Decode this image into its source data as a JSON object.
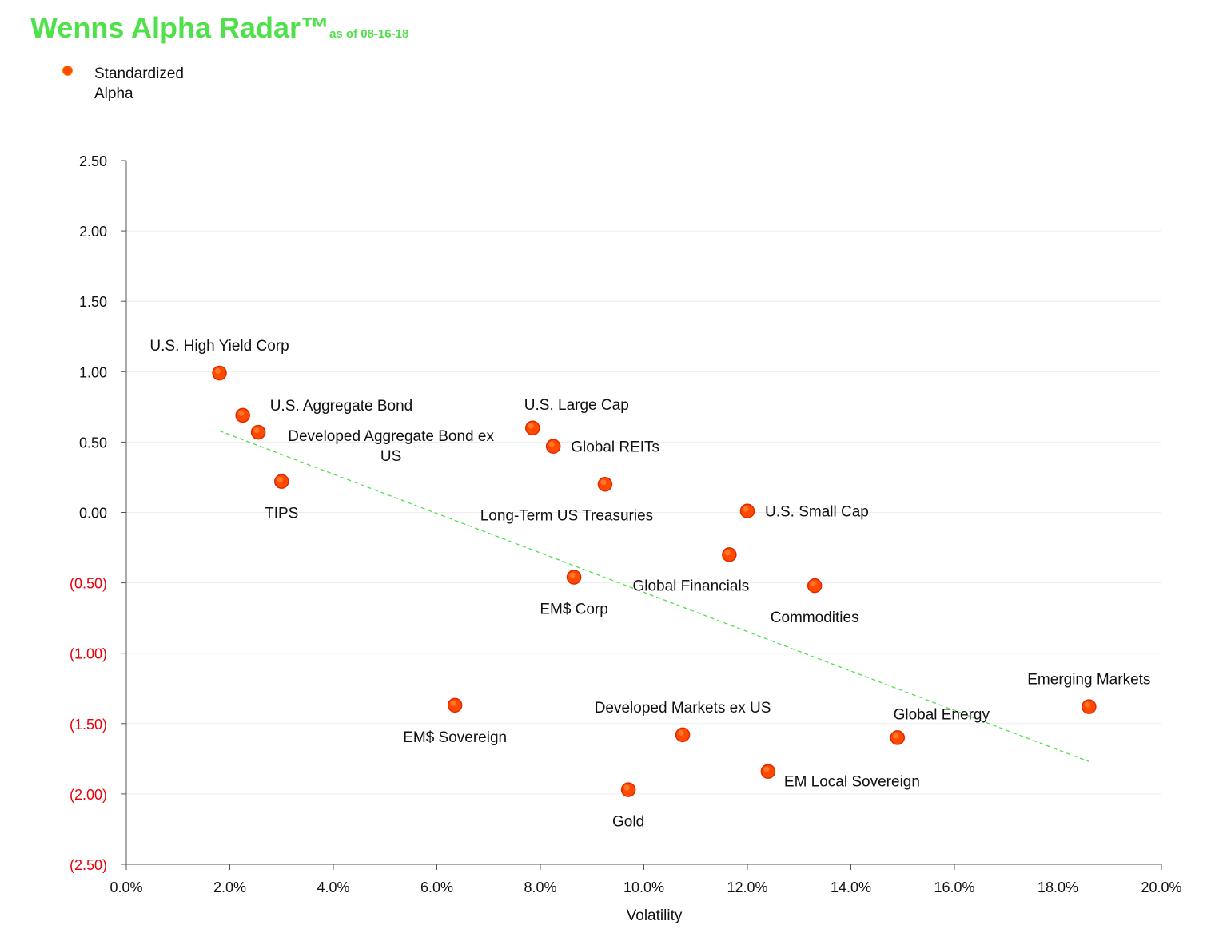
{
  "header": {
    "title": "Wenns Alpha Radar™",
    "subtitle": "as of 08-16-18"
  },
  "legend": {
    "label": "Standardized Alpha"
  },
  "chart_data": {
    "type": "scatter",
    "xlabel": "Volatility",
    "ylabel": "",
    "xlim": [
      0.0,
      20.0
    ],
    "ylim": [
      -2.5,
      2.5
    ],
    "x_unit": "%",
    "x_ticks": [
      "0.0%",
      "2.0%",
      "4.0%",
      "6.0%",
      "8.0%",
      "10.0%",
      "12.0%",
      "14.0%",
      "16.0%",
      "18.0%",
      "20.0%"
    ],
    "y_ticks": [
      "2.50",
      "2.00",
      "1.50",
      "1.00",
      "0.50",
      "0.00",
      "(0.50)",
      "(1.00)",
      "(1.50)",
      "(2.00)",
      "(2.50)"
    ],
    "y_tick_values": [
      2.5,
      2.0,
      1.5,
      1.0,
      0.5,
      0.0,
      -0.5,
      -1.0,
      -1.5,
      -2.0,
      -2.5
    ],
    "negative_tick_color": "#e8000b",
    "grid": "horizontal",
    "legend_position": "top-left",
    "series": [
      {
        "name": "Standardized Alpha",
        "color": "#ff4a00",
        "points": [
          {
            "label": "U.S. High Yield Corp",
            "x": 1.8,
            "y": 0.99,
            "anchor": "above"
          },
          {
            "label": "U.S. Aggregate Bond",
            "x": 2.25,
            "y": 0.69,
            "anchor": "right-up"
          },
          {
            "label": "Developed Aggregate Bond ex US",
            "x": 2.55,
            "y": 0.57,
            "anchor": "right"
          },
          {
            "label": "TIPS",
            "x": 3.0,
            "y": 0.22,
            "anchor": "below"
          },
          {
            "label": "U.S. Large Cap",
            "x": 7.85,
            "y": 0.6,
            "anchor": "above-right"
          },
          {
            "label": "Global REITs",
            "x": 8.25,
            "y": 0.47,
            "anchor": "right"
          },
          {
            "label": "Long-Term US Treasuries",
            "x": 9.25,
            "y": 0.2,
            "anchor": "below-left"
          },
          {
            "label": "U.S. Small Cap",
            "x": 12.0,
            "y": 0.01,
            "anchor": "right"
          },
          {
            "label": "Global Financials",
            "x": 11.65,
            "y": -0.3,
            "anchor": "below-left"
          },
          {
            "label": "EM$ Corp",
            "x": 8.65,
            "y": -0.46,
            "anchor": "below"
          },
          {
            "label": "Commodities",
            "x": 13.3,
            "y": -0.52,
            "anchor": "below"
          },
          {
            "label": "EM$ Sovereign",
            "x": 6.35,
            "y": -1.37,
            "anchor": "below"
          },
          {
            "label": "Developed Markets ex US",
            "x": 10.75,
            "y": -1.58,
            "anchor": "above"
          },
          {
            "label": "Gold",
            "x": 9.7,
            "y": -1.97,
            "anchor": "below"
          },
          {
            "label": "EM Local Sovereign",
            "x": 12.4,
            "y": -1.84,
            "anchor": "right-down"
          },
          {
            "label": "Global Energy",
            "x": 14.9,
            "y": -1.6,
            "anchor": "above-right"
          },
          {
            "label": "Emerging Markets",
            "x": 18.6,
            "y": -1.38,
            "anchor": "above"
          }
        ]
      }
    ],
    "trendline": {
      "style": "dashed",
      "color": "#4fe04a",
      "from": {
        "x": 1.8,
        "y": 0.58
      },
      "to": {
        "x": 18.6,
        "y": -1.77
      }
    }
  }
}
